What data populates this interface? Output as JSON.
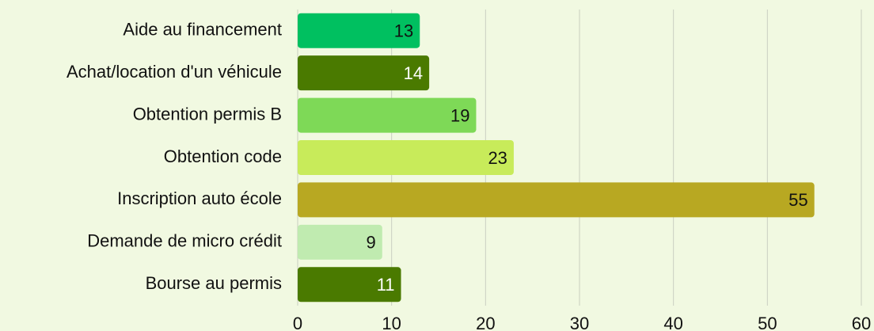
{
  "chart_data": {
    "type": "bar",
    "orientation": "horizontal",
    "categories": [
      "Aide au financement",
      "Achat/location d'un véhicule",
      "Obtention permis B",
      "Obtention code",
      "Inscription auto école",
      "Demande de micro crédit",
      "Bourse au permis"
    ],
    "values": [
      13,
      14,
      19,
      23,
      55,
      9,
      11
    ],
    "colors": [
      "#00c060",
      "#4a7a00",
      "#7ed957",
      "#c8eb5a",
      "#b8a822",
      "#c0ebb0",
      "#4a7a00"
    ],
    "xlim": [
      0,
      60
    ],
    "xticks": [
      0,
      10,
      20,
      30,
      40,
      50,
      60
    ],
    "grid": true
  }
}
